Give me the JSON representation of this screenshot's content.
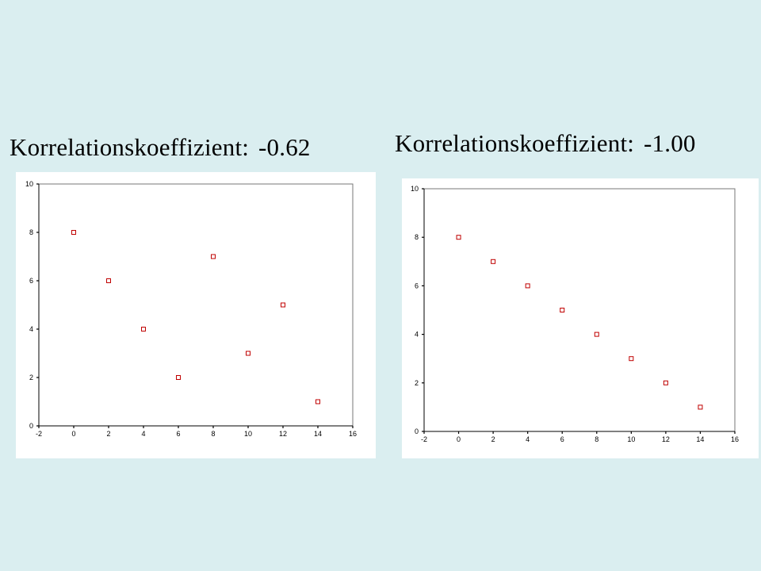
{
  "colors": {
    "background": "#daeef0",
    "panel": "#ffffff",
    "marker": "#c00000",
    "axis": "#000000"
  },
  "chart_data": [
    {
      "type": "scatter",
      "title": "Korrelationskoeffizient:  -0.62",
      "xlim": [
        -2,
        16
      ],
      "ylim": [
        0,
        10
      ],
      "x_ticks": [
        "-2",
        "0",
        "2",
        "4",
        "6",
        "8",
        "10",
        "12",
        "14",
        "16"
      ],
      "y_ticks": [
        "0",
        "2",
        "4",
        "6",
        "8",
        "10"
      ],
      "grid": false,
      "marker": "hollow-square",
      "points": [
        {
          "x": 0,
          "y": 8
        },
        {
          "x": 2,
          "y": 6
        },
        {
          "x": 4,
          "y": 4
        },
        {
          "x": 6,
          "y": 2
        },
        {
          "x": 8,
          "y": 7
        },
        {
          "x": 10,
          "y": 3
        },
        {
          "x": 12,
          "y": 5
        },
        {
          "x": 14,
          "y": 1
        }
      ]
    },
    {
      "type": "scatter",
      "title": "Korrelationskoeffizient:  -1.00",
      "xlim": [
        -2,
        16
      ],
      "ylim": [
        0,
        10
      ],
      "x_ticks": [
        "-2",
        "0",
        "2",
        "4",
        "6",
        "8",
        "10",
        "12",
        "14",
        "16"
      ],
      "y_ticks": [
        "0",
        "2",
        "4",
        "6",
        "8",
        "10"
      ],
      "grid": false,
      "marker": "hollow-square",
      "points": [
        {
          "x": 0,
          "y": 8
        },
        {
          "x": 2,
          "y": 7
        },
        {
          "x": 4,
          "y": 6
        },
        {
          "x": 6,
          "y": 5
        },
        {
          "x": 8,
          "y": 4
        },
        {
          "x": 10,
          "y": 3
        },
        {
          "x": 12,
          "y": 2
        },
        {
          "x": 14,
          "y": 1
        }
      ]
    }
  ]
}
